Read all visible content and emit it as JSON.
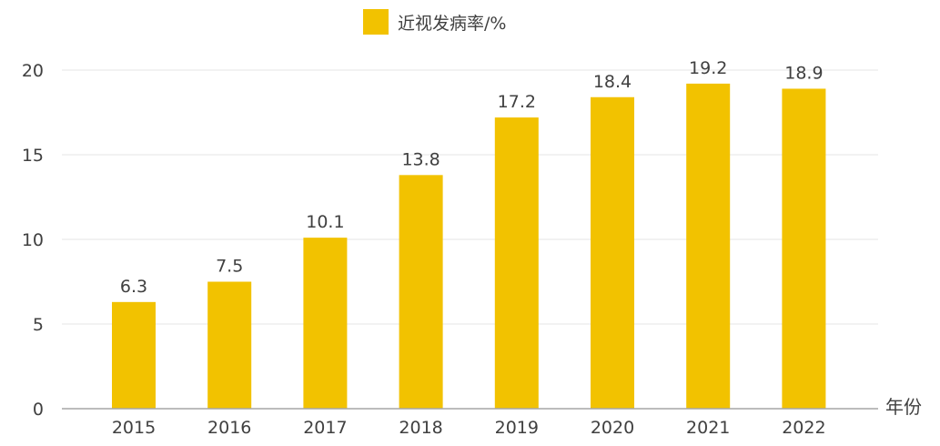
{
  "chart_data": {
    "type": "bar",
    "categories": [
      "2015",
      "2016",
      "2017",
      "2018",
      "2019",
      "2020",
      "2021",
      "2022"
    ],
    "series": [
      {
        "name": "近视发病率/%",
        "values": [
          6.3,
          7.5,
          10.1,
          13.8,
          17.2,
          18.4,
          19.2,
          18.9
        ]
      }
    ],
    "data_labels": [
      "6.3",
      "7.5",
      "10.1",
      "13.8",
      "17.2",
      "18.4",
      "19.2",
      "18.9"
    ],
    "title": "",
    "xlabel": "年份",
    "ylabel": "",
    "ylim": [
      0,
      20
    ],
    "yticks": [
      "0",
      "5",
      "10",
      "15",
      "20"
    ],
    "grid": true,
    "legend_position": "top-center",
    "colors": {
      "bar": "#F2C200",
      "grid": "#E6E6E6",
      "axis": "#A6A6A6",
      "text": "#404040"
    }
  }
}
